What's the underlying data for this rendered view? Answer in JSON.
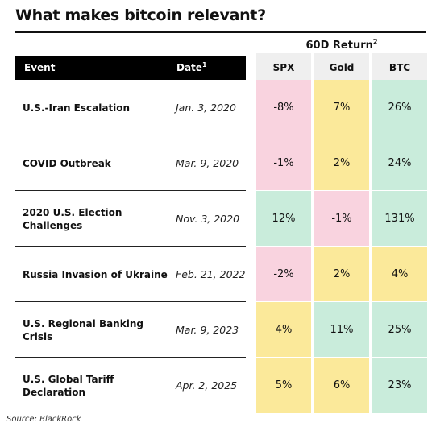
{
  "title": "What makes bitcoin relevant?",
  "group_header": {
    "label": "60D Return",
    "sup": "2"
  },
  "headers": {
    "event": "Event",
    "date": "Date",
    "date_sup": "1",
    "spx": "SPX",
    "gold": "Gold",
    "btc": "BTC"
  },
  "rows": [
    {
      "event": "U.S.-Iran Escalation",
      "date": "Jan. 3, 2020",
      "spx": "-8%",
      "gold": "7%",
      "btc": "26%"
    },
    {
      "event": "COVID Outbreak",
      "date": "Mar. 9, 2020",
      "spx": "-1%",
      "gold": "2%",
      "btc": "24%"
    },
    {
      "event": "2020 U.S. Election Challenges",
      "date": "Nov. 3, 2020",
      "spx": "12%",
      "gold": "-1%",
      "btc": "131%"
    },
    {
      "event": "Russia Invasion of Ukraine",
      "date": "Feb. 21, 2022",
      "spx": "-2%",
      "gold": "2%",
      "btc": "4%"
    },
    {
      "event": "U.S. Regional Banking Crisis",
      "date": "Mar. 9, 2023",
      "spx": "4%",
      "gold": "11%",
      "btc": "25%"
    },
    {
      "event": "U.S. Global Tariff Declaration",
      "date": "Apr. 2, 2025",
      "spx": "5%",
      "gold": "6%",
      "btc": "23%"
    }
  ],
  "source": "Source: BlackRock",
  "colors": {
    "negative": "#f9d3df",
    "low": "#fbe99a",
    "high": "#c9ecdb",
    "header_bg": "#efefef"
  },
  "chart_data": {
    "type": "table",
    "title": "What makes bitcoin relevant?",
    "columns": [
      "Event",
      "Date",
      "SPX",
      "Gold",
      "BTC"
    ],
    "series": [
      {
        "name": "SPX",
        "values": [
          -8,
          -1,
          12,
          -2,
          4,
          5
        ]
      },
      {
        "name": "Gold",
        "values": [
          7,
          2,
          -1,
          2,
          11,
          6
        ]
      },
      {
        "name": "BTC",
        "values": [
          26,
          24,
          131,
          4,
          25,
          23
        ]
      }
    ],
    "categories": [
      "U.S.-Iran Escalation",
      "COVID Outbreak",
      "2020 U.S. Election Challenges",
      "Russia Invasion of Ukraine",
      "U.S. Regional Banking Crisis",
      "U.S. Global Tariff Declaration"
    ]
  }
}
